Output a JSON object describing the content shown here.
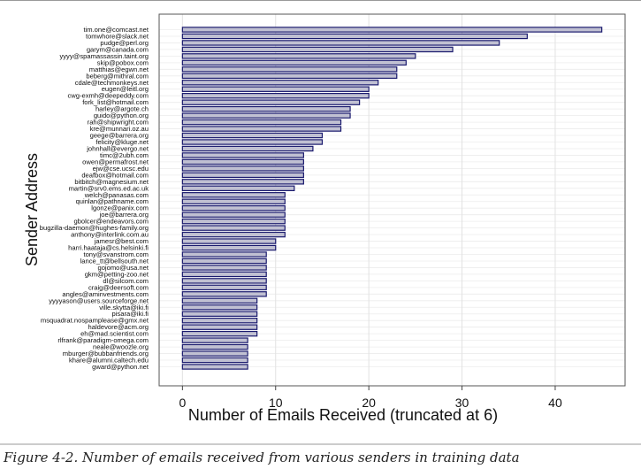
{
  "chart_data": {
    "type": "bar",
    "orientation": "horizontal",
    "xlabel": "Number of Emails Received (truncated at 6)",
    "ylabel": "Sender Address",
    "xlim": [
      -2.5,
      47.5
    ],
    "xticks": [
      0,
      10,
      20,
      30,
      40
    ],
    "grid": true,
    "bar_color": "#c0c0d2",
    "bar_border": "#1a1a6e",
    "categories": [
      "tim.one@comcast.net",
      "tomwhore@slack.net",
      "pudge@perl.org",
      "garym@canada.com",
      "yyyy@spamassassin.taint.org",
      "skip@pobox.com",
      "matthias@egwn.net",
      "beberg@mithral.com",
      "cdale@techmonkeys.net",
      "eugen@leitl.org",
      "cwg-exmh@deepeddy.com",
      "fork_list@hotmail.com",
      "harley@argote.ch",
      "guido@python.org",
      "rah@shipwright.com",
      "kre@munnari.oz.au",
      "geege@barrera.org",
      "felicity@kluge.net",
      "johnhall@evergo.net",
      "timc@2ubh.com",
      "owen@permafrost.net",
      "ejw@cse.ucsc.edu",
      "deafbox@hotmail.com",
      "bitbitch@magnesium.net",
      "martin@srv0.ems.ed.ac.uk",
      "welch@panasas.com",
      "quinlan@pathname.com",
      "lgonze@panix.com",
      "joe@barrera.org",
      "gbolcer@endeavors.com",
      "bugzilla-daemon@hughes-family.org",
      "anthony@interlink.com.au",
      "jamesr@best.com",
      "harri.haataja@cs.helsinki.fi",
      "tony@svanstrom.com",
      "lance_tt@bellsouth.net",
      "gojomo@usa.net",
      "gkm@petting-zoo.net",
      "dl@silcom.com",
      "craig@deersoft.com",
      "angles@aminvestments.com",
      "yyyyason@users.sourceforge.net",
      "ville.skytta@iki.fi",
      "pisara@iki.fi",
      "msquadrat.nospamplease@gmx.net",
      "haldevore@acm.org",
      "eh@mad.scientist.com",
      "rlfrank@paradigm-omega.com",
      "neale@woozle.org",
      "mburger@bubbanfriends.org",
      "khare@alumni.caltech.edu",
      "gward@python.net"
    ],
    "values": [
      45,
      37,
      34,
      29,
      25,
      24,
      23,
      23,
      21,
      20,
      20,
      19,
      18,
      18,
      17,
      17,
      15,
      15,
      14,
      13,
      13,
      13,
      13,
      13,
      12,
      11,
      11,
      11,
      11,
      11,
      11,
      11,
      10,
      10,
      9,
      9,
      9,
      9,
      9,
      9,
      9,
      8,
      8,
      8,
      8,
      8,
      8,
      7,
      7,
      7,
      7,
      7
    ]
  },
  "caption": "Figure 4-2. Number of emails received from various senders in training data"
}
